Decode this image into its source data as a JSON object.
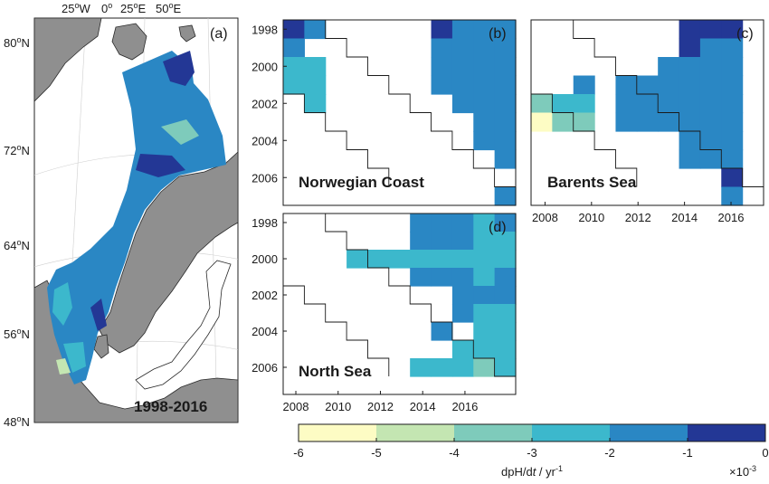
{
  "chart_data": {
    "type": "heatmap",
    "map_panel": {
      "panel_label": "(a)",
      "period_label": "1998-2016",
      "longitude_labels": [
        "25",
        "W",
        "0",
        "25",
        "E",
        "50",
        "E"
      ],
      "latitude_labels": [
        "80",
        "72",
        "64",
        "56",
        "48"
      ],
      "degree_mark": "o",
      "latitude_suffix": "N"
    },
    "y_ticks": [
      "1998",
      "2000",
      "2002",
      "2004",
      "2006"
    ],
    "x_ticks": [
      "2008",
      "2010",
      "2012",
      "2014",
      "2016"
    ],
    "panels": [
      {
        "id": "b",
        "panel_label": "(b)",
        "region": "Norwegian Coast",
        "show_y_ticks": true,
        "show_x_ticks": false,
        "cells": [
          [
            0,
            0,
            -0.5
          ],
          [
            1,
            0,
            -1.5
          ],
          [
            7,
            0,
            -0.5
          ],
          [
            8,
            0,
            -1.5
          ],
          [
            9,
            0,
            -1.5
          ],
          [
            10,
            0,
            -1.5
          ],
          [
            0,
            1,
            -1.5
          ],
          [
            7,
            1,
            -1.5
          ],
          [
            8,
            1,
            -1.5
          ],
          [
            9,
            1,
            -1.5
          ],
          [
            10,
            1,
            -1.5
          ],
          [
            0,
            2,
            -2.5
          ],
          [
            1,
            2,
            -2.5
          ],
          [
            7,
            2,
            -1.5
          ],
          [
            8,
            2,
            -1.5
          ],
          [
            9,
            2,
            -1.5
          ],
          [
            10,
            2,
            -1.5
          ],
          [
            0,
            3,
            -2.5
          ],
          [
            1,
            3,
            -2.5
          ],
          [
            7,
            3,
            -1.5
          ],
          [
            8,
            3,
            -1.5
          ],
          [
            9,
            3,
            -1.5
          ],
          [
            10,
            3,
            -1.5
          ],
          [
            1,
            4,
            -2.5
          ],
          [
            8,
            4,
            -1.5
          ],
          [
            9,
            4,
            -1.5
          ],
          [
            10,
            4,
            -1.5
          ],
          [
            9,
            5,
            -1.5
          ],
          [
            10,
            5,
            -1.5
          ],
          [
            9,
            6,
            -1.5
          ],
          [
            10,
            6,
            -1.5
          ],
          [
            10,
            7,
            -1.5
          ],
          [
            10,
            9,
            -1.5
          ]
        ]
      },
      {
        "id": "c",
        "panel_label": "(c)",
        "region": "Barents Sea",
        "show_y_ticks": false,
        "show_x_ticks": true,
        "cells": [
          [
            7,
            0,
            -0.5
          ],
          [
            8,
            0,
            -0.5
          ],
          [
            9,
            0,
            -0.5
          ],
          [
            7,
            1,
            -0.5
          ],
          [
            8,
            1,
            -1.5
          ],
          [
            9,
            1,
            -1.5
          ],
          [
            6,
            2,
            -1.5
          ],
          [
            7,
            2,
            -1.5
          ],
          [
            8,
            2,
            -1.5
          ],
          [
            9,
            2,
            -1.5
          ],
          [
            2,
            3,
            -1.5
          ],
          [
            4,
            3,
            -1.5
          ],
          [
            5,
            3,
            -1.5
          ],
          [
            6,
            3,
            -1.5
          ],
          [
            7,
            3,
            -1.5
          ],
          [
            8,
            3,
            -1.5
          ],
          [
            9,
            3,
            -1.5
          ],
          [
            0,
            4,
            -3.5
          ],
          [
            1,
            4,
            -2.5
          ],
          [
            2,
            4,
            -2.5
          ],
          [
            4,
            4,
            -1.5
          ],
          [
            5,
            4,
            -1.5
          ],
          [
            6,
            4,
            -1.5
          ],
          [
            7,
            4,
            -1.5
          ],
          [
            8,
            4,
            -1.5
          ],
          [
            9,
            4,
            -1.5
          ],
          [
            0,
            5,
            -5.5
          ],
          [
            1,
            5,
            -3.5
          ],
          [
            2,
            5,
            -3.5
          ],
          [
            4,
            5,
            -1.5
          ],
          [
            5,
            5,
            -1.5
          ],
          [
            6,
            5,
            -1.5
          ],
          [
            7,
            5,
            -1.5
          ],
          [
            8,
            5,
            -1.5
          ],
          [
            9,
            5,
            -1.5
          ],
          [
            7,
            6,
            -1.5
          ],
          [
            8,
            6,
            -1.5
          ],
          [
            9,
            6,
            -1.5
          ],
          [
            7,
            7,
            -1.5
          ],
          [
            8,
            7,
            -1.5
          ],
          [
            9,
            7,
            -1.5
          ],
          [
            9,
            8,
            -0.5
          ],
          [
            9,
            9,
            -1.5
          ]
        ]
      },
      {
        "id": "d",
        "panel_label": "(d)",
        "region": "North Sea",
        "show_y_ticks": true,
        "show_x_ticks": true,
        "cells": [
          [
            6,
            0,
            -1.5
          ],
          [
            7,
            0,
            -1.5
          ],
          [
            8,
            0,
            -1.5
          ],
          [
            9,
            0,
            -2.5
          ],
          [
            10,
            0,
            -1.5
          ],
          [
            6,
            1,
            -1.5
          ],
          [
            7,
            1,
            -1.5
          ],
          [
            8,
            1,
            -1.5
          ],
          [
            9,
            1,
            -2.5
          ],
          [
            10,
            1,
            -2.5
          ],
          [
            3,
            2,
            -2.5
          ],
          [
            4,
            2,
            -2.5
          ],
          [
            5,
            2,
            -2.5
          ],
          [
            6,
            2,
            -2.5
          ],
          [
            7,
            2,
            -2.5
          ],
          [
            8,
            2,
            -2.5
          ],
          [
            9,
            2,
            -2.5
          ],
          [
            10,
            2,
            -2.5
          ],
          [
            6,
            3,
            -1.5
          ],
          [
            7,
            3,
            -1.5
          ],
          [
            8,
            3,
            -1.5
          ],
          [
            9,
            3,
            -2.5
          ],
          [
            10,
            3,
            -1.5
          ],
          [
            8,
            4,
            -1.5
          ],
          [
            9,
            4,
            -1.5
          ],
          [
            10,
            4,
            -1.5
          ],
          [
            8,
            5,
            -1.5
          ],
          [
            9,
            5,
            -2.5
          ],
          [
            10,
            5,
            -2.5
          ],
          [
            7,
            6,
            -1.5
          ],
          [
            9,
            6,
            -2.5
          ],
          [
            10,
            6,
            -2.5
          ],
          [
            8,
            7,
            -2.5
          ],
          [
            9,
            7,
            -2.5
          ],
          [
            10,
            7,
            -2.5
          ],
          [
            6,
            8,
            -2.5
          ],
          [
            7,
            8,
            -2.5
          ],
          [
            8,
            8,
            -2.5
          ],
          [
            9,
            8,
            -3.5
          ],
          [
            10,
            8,
            -2.5
          ]
        ]
      }
    ],
    "colorbar": {
      "bins": [
        -6,
        -5,
        -4,
        -3,
        -2,
        -1,
        0
      ],
      "tick_labels": [
        "-6",
        "-5",
        "-4",
        "-3",
        "-2",
        "-1",
        "0"
      ],
      "colors": [
        "#fdfcc4",
        "#c4e6b2",
        "#7ecbbb",
        "#3cb8cc",
        "#2a87c4",
        "#233795"
      ],
      "label": "dpH/dt / yr-1",
      "label_main": "dpH/d",
      "label_italic": "t",
      "label_unit": " / yr",
      "label_exp": "-1",
      "scale_base": "×10",
      "scale_exp": "-3"
    }
  }
}
